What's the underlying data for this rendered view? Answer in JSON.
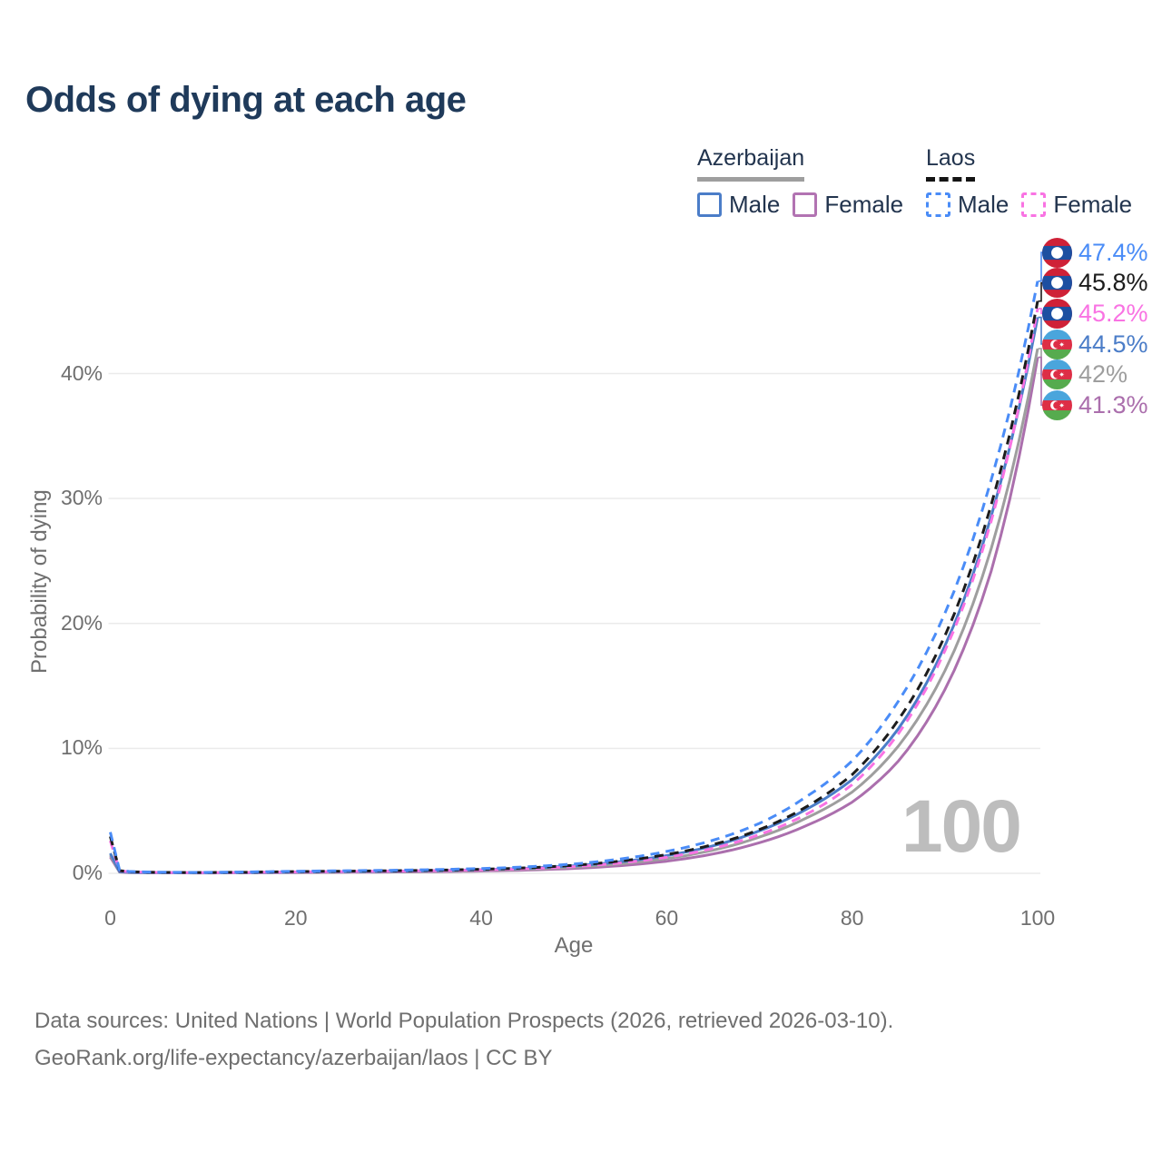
{
  "title": "Odds of dying at each age",
  "watermark_age": "100",
  "legend": {
    "groups": [
      {
        "country": "Azerbaijan",
        "line_style": "solid",
        "line_color": "#9e9e9e",
        "items": [
          {
            "label": "Male",
            "color": "#4b7dc8",
            "dashed": false
          },
          {
            "label": "Female",
            "color": "#b273b2",
            "dashed": false
          }
        ]
      },
      {
        "country": "Laos",
        "line_style": "dashed",
        "line_color": "#141414",
        "items": [
          {
            "label": "Male",
            "color": "#4a8cf7",
            "dashed": true
          },
          {
            "label": "Female",
            "color": "#f973e3",
            "dashed": true
          }
        ]
      }
    ]
  },
  "chart_data": {
    "type": "line",
    "title": "Odds of dying at each age",
    "xlabel": "Age",
    "ylabel": "Probability of dying",
    "xlim": [
      0,
      100
    ],
    "ylim_percent": [
      0,
      48
    ],
    "grid": "horizontal",
    "x_ticks": [
      {
        "label": "0",
        "value": 0
      },
      {
        "label": "20",
        "value": 20
      },
      {
        "label": "40",
        "value": 40
      },
      {
        "label": "60",
        "value": 60
      },
      {
        "label": "80",
        "value": 80
      },
      {
        "label": "100",
        "value": 100
      }
    ],
    "y_ticks": [
      {
        "label": "0%",
        "value": 0
      },
      {
        "label": "10%",
        "value": 10
      },
      {
        "label": "20%",
        "value": 20
      },
      {
        "label": "30%",
        "value": 30
      },
      {
        "label": "40%",
        "value": 40
      }
    ],
    "ages": [
      0,
      1,
      2,
      5,
      10,
      15,
      20,
      25,
      30,
      35,
      40,
      45,
      50,
      55,
      60,
      65,
      70,
      75,
      80,
      85,
      90,
      95,
      100
    ],
    "series": [
      {
        "name": "Laos Male",
        "country": "Laos",
        "sex": "male",
        "flag": "laos",
        "color": "#4a8cf7",
        "dashed": true,
        "end_label": "47.4%",
        "end_value": 47.4,
        "values": [
          3.3,
          0.25,
          0.15,
          0.09,
          0.07,
          0.11,
          0.17,
          0.2,
          0.24,
          0.3,
          0.38,
          0.52,
          0.75,
          1.15,
          1.75,
          2.65,
          4.0,
          6.1,
          9.0,
          13.8,
          20.8,
          31.5,
          47.4
        ]
      },
      {
        "name": "Laos Both sexes",
        "country": "Laos",
        "sex": "both",
        "flag": "laos",
        "color": "#1c1c1c",
        "dashed": true,
        "end_label": "45.8%",
        "end_value": 45.8,
        "values": [
          2.95,
          0.22,
          0.13,
          0.08,
          0.06,
          0.09,
          0.14,
          0.17,
          0.2,
          0.25,
          0.32,
          0.44,
          0.64,
          0.98,
          1.5,
          2.3,
          3.5,
          5.3,
          7.9,
          12.3,
          19.0,
          29.5,
          45.8
        ]
      },
      {
        "name": "Laos Female",
        "country": "Laos",
        "sex": "female",
        "flag": "laos",
        "color": "#f973e3",
        "dashed": true,
        "end_label": "45.2%",
        "end_value": 45.2,
        "values": [
          2.6,
          0.2,
          0.12,
          0.07,
          0.05,
          0.07,
          0.11,
          0.14,
          0.17,
          0.21,
          0.27,
          0.37,
          0.54,
          0.83,
          1.28,
          2.0,
          3.1,
          4.7,
          7.1,
          11.2,
          17.8,
          28.2,
          45.2
        ]
      },
      {
        "name": "Azerbaijan Male",
        "country": "Azerbaijan",
        "sex": "male",
        "flag": "azerbaijan",
        "color": "#4b7dc8",
        "dashed": false,
        "end_label": "44.5%",
        "end_value": 44.5,
        "values": [
          1.6,
          0.12,
          0.08,
          0.05,
          0.04,
          0.06,
          0.1,
          0.13,
          0.16,
          0.21,
          0.29,
          0.41,
          0.6,
          0.92,
          1.42,
          2.2,
          3.4,
          5.1,
          7.5,
          11.6,
          18.2,
          28.6,
          44.5
        ]
      },
      {
        "name": "Azerbaijan Both sexes",
        "country": "Azerbaijan",
        "sex": "both",
        "flag": "azerbaijan",
        "color": "#9e9e9e",
        "dashed": false,
        "end_label": "42%",
        "end_value": 42.0,
        "values": [
          1.45,
          0.11,
          0.07,
          0.045,
          0.035,
          0.05,
          0.08,
          0.1,
          0.13,
          0.17,
          0.23,
          0.33,
          0.49,
          0.76,
          1.18,
          1.85,
          2.9,
          4.4,
          6.5,
          10.2,
          16.2,
          26.0,
          42.0
        ]
      },
      {
        "name": "Azerbaijan Female",
        "country": "Azerbaijan",
        "sex": "female",
        "flag": "azerbaijan",
        "color": "#ab6fad",
        "dashed": false,
        "end_label": "41.3%",
        "end_value": 41.3,
        "values": [
          1.3,
          0.1,
          0.06,
          0.04,
          0.03,
          0.04,
          0.06,
          0.08,
          0.1,
          0.13,
          0.18,
          0.26,
          0.39,
          0.61,
          0.97,
          1.55,
          2.45,
          3.8,
          5.7,
          9.0,
          14.7,
          24.2,
          41.3
        ]
      }
    ]
  },
  "flag_colors": {
    "laos": {
      "red": "#cf2137",
      "blue": "#1c4fa1",
      "disc": "#ffffff"
    },
    "azerbaijan": {
      "blue": "#4aa5dc",
      "red": "#dd2e46",
      "green": "#56ab4e",
      "emblem": "#ffffff"
    }
  },
  "footer": {
    "line1": "Data sources: United Nations | World Population Prospects (2026, retrieved 2026-03-10).",
    "line2": "GeoRank.org/life-expectancy/azerbaijan/laos | CC BY"
  }
}
